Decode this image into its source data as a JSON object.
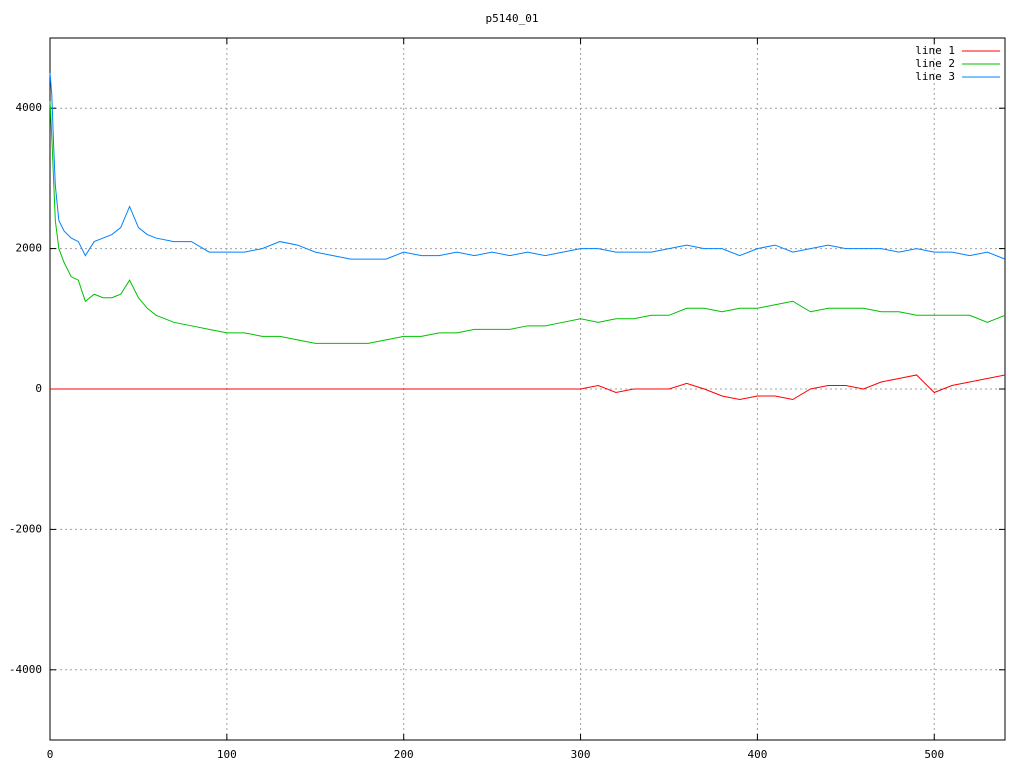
{
  "chart_data": {
    "type": "line",
    "title": "p5140_01",
    "x": [
      0,
      1,
      2,
      3,
      5,
      8,
      12,
      16,
      20,
      25,
      30,
      35,
      40,
      45,
      50,
      55,
      60,
      70,
      80,
      90,
      100,
      110,
      120,
      130,
      140,
      150,
      160,
      170,
      180,
      190,
      200,
      210,
      220,
      230,
      240,
      250,
      260,
      270,
      280,
      290,
      300,
      310,
      320,
      330,
      340,
      350,
      360,
      370,
      380,
      390,
      400,
      410,
      420,
      430,
      440,
      450,
      460,
      470,
      480,
      490,
      500,
      510,
      520,
      530,
      540
    ],
    "series": [
      {
        "name": "line 1",
        "color": "#ff0000",
        "values": [
          0,
          0,
          0,
          0,
          0,
          0,
          0,
          0,
          0,
          0,
          0,
          0,
          0,
          0,
          0,
          0,
          0,
          0,
          0,
          0,
          0,
          0,
          0,
          0,
          0,
          0,
          0,
          0,
          0,
          0,
          0,
          0,
          0,
          0,
          0,
          0,
          0,
          0,
          0,
          0,
          0,
          50,
          -50,
          0,
          0,
          0,
          80,
          0,
          -100,
          -150,
          -100,
          -100,
          -150,
          0,
          50,
          50,
          0,
          100,
          150,
          200,
          -50,
          50,
          100,
          150,
          200
        ]
      },
      {
        "name": "line 2",
        "color": "#00c000",
        "values": [
          4100,
          3600,
          3000,
          2400,
          2000,
          1800,
          1600,
          1550,
          1250,
          1350,
          1300,
          1300,
          1350,
          1550,
          1300,
          1150,
          1050,
          950,
          900,
          850,
          800,
          800,
          750,
          750,
          700,
          650,
          650,
          650,
          650,
          700,
          750,
          750,
          800,
          800,
          850,
          850,
          850,
          900,
          900,
          950,
          1000,
          950,
          1000,
          1000,
          1050,
          1050,
          1150,
          1150,
          1100,
          1150,
          1150,
          1200,
          1250,
          1100,
          1150,
          1150,
          1150,
          1100,
          1100,
          1050,
          1050,
          1050,
          1050,
          950,
          1050
        ]
      },
      {
        "name": "line 3",
        "color": "#0080ff",
        "values": [
          4500,
          4200,
          3500,
          2900,
          2400,
          2250,
          2150,
          2100,
          1900,
          2100,
          2150,
          2200,
          2300,
          2600,
          2300,
          2200,
          2150,
          2100,
          2100,
          1950,
          1950,
          1950,
          2000,
          2100,
          2050,
          1950,
          1900,
          1850,
          1850,
          1850,
          1950,
          1900,
          1900,
          1950,
          1900,
          1950,
          1900,
          1950,
          1900,
          1950,
          2000,
          2000,
          1950,
          1950,
          1950,
          2000,
          2050,
          2000,
          2000,
          1900,
          2000,
          2050,
          1950,
          2000,
          2050,
          2000,
          2000,
          2000,
          1950,
          2000,
          1950,
          1950,
          1900,
          1950,
          1850
        ]
      }
    ],
    "xlim": [
      0,
      540
    ],
    "ylim": [
      -5000,
      5000
    ],
    "xticks": [
      0,
      100,
      200,
      300,
      400,
      500
    ],
    "yticks": [
      -4000,
      -2000,
      0,
      2000,
      4000
    ],
    "grid": true,
    "legend": "top-right"
  }
}
